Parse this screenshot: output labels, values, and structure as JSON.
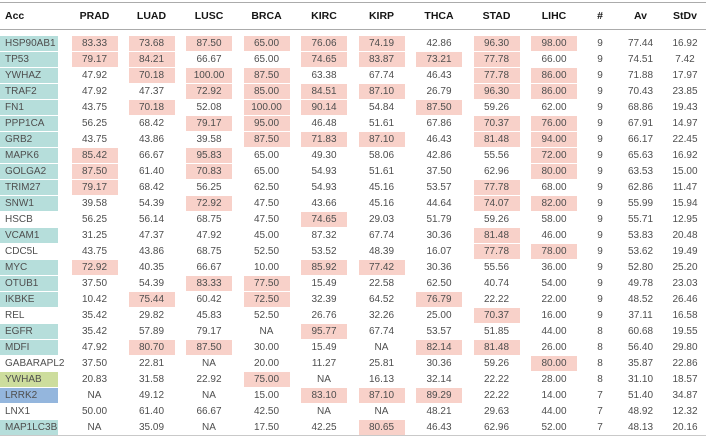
{
  "colors": {
    "highlight": "#f8d1c9",
    "teal": "#b6dedb",
    "green": "#cddd9d",
    "blue": "#94b6dd"
  },
  "chart_data": {
    "type": "table",
    "columns": [
      "Acc",
      "PRAD",
      "LUAD",
      "LUSC",
      "BRCA",
      "KIRC",
      "KIRP",
      "THCA",
      "STAD",
      "LIHC",
      "#",
      "Av",
      "StDv"
    ],
    "rows": [
      {
        "acc": "HSP90AB1",
        "acc_color": "teal",
        "values": [
          "83.33",
          "73.68",
          "87.50",
          "65.00",
          "76.06",
          "74.19",
          "42.86",
          "96.30",
          "98.00"
        ],
        "highlights": [
          1,
          1,
          1,
          1,
          1,
          1,
          0,
          1,
          1
        ],
        "count": "9",
        "av": "77.44",
        "stdv": "16.92"
      },
      {
        "acc": "TP53",
        "acc_color": "teal",
        "values": [
          "79.17",
          "84.21",
          "66.67",
          "65.00",
          "74.65",
          "83.87",
          "73.21",
          "77.78",
          "66.00"
        ],
        "highlights": [
          1,
          1,
          0,
          0,
          1,
          1,
          1,
          1,
          0
        ],
        "count": "9",
        "av": "74.51",
        "stdv": "7.42"
      },
      {
        "acc": "YWHAZ",
        "acc_color": "teal",
        "values": [
          "47.92",
          "70.18",
          "100.00",
          "87.50",
          "63.38",
          "67.74",
          "46.43",
          "77.78",
          "86.00"
        ],
        "highlights": [
          0,
          1,
          1,
          1,
          0,
          0,
          0,
          1,
          1
        ],
        "count": "9",
        "av": "71.88",
        "stdv": "17.97"
      },
      {
        "acc": "TRAF2",
        "acc_color": "teal",
        "values": [
          "47.92",
          "47.37",
          "72.92",
          "85.00",
          "84.51",
          "87.10",
          "26.79",
          "96.30",
          "86.00"
        ],
        "highlights": [
          0,
          0,
          1,
          1,
          1,
          1,
          0,
          1,
          1
        ],
        "count": "9",
        "av": "70.43",
        "stdv": "23.85"
      },
      {
        "acc": "FN1",
        "acc_color": "teal",
        "values": [
          "43.75",
          "70.18",
          "52.08",
          "100.00",
          "90.14",
          "54.84",
          "87.50",
          "59.26",
          "62.00"
        ],
        "highlights": [
          0,
          1,
          0,
          1,
          1,
          0,
          1,
          0,
          0
        ],
        "count": "9",
        "av": "68.86",
        "stdv": "19.43"
      },
      {
        "acc": "PPP1CA",
        "acc_color": "teal",
        "values": [
          "56.25",
          "68.42",
          "79.17",
          "95.00",
          "46.48",
          "51.61",
          "67.86",
          "70.37",
          "76.00"
        ],
        "highlights": [
          0,
          0,
          1,
          1,
          0,
          0,
          0,
          1,
          1
        ],
        "count": "9",
        "av": "67.91",
        "stdv": "14.97"
      },
      {
        "acc": "GRB2",
        "acc_color": "teal",
        "values": [
          "43.75",
          "43.86",
          "39.58",
          "87.50",
          "71.83",
          "87.10",
          "46.43",
          "81.48",
          "94.00"
        ],
        "highlights": [
          0,
          0,
          0,
          1,
          1,
          1,
          0,
          1,
          1
        ],
        "count": "9",
        "av": "66.17",
        "stdv": "22.45"
      },
      {
        "acc": "MAPK6",
        "acc_color": "teal",
        "values": [
          "85.42",
          "66.67",
          "95.83",
          "65.00",
          "49.30",
          "58.06",
          "42.86",
          "55.56",
          "72.00"
        ],
        "highlights": [
          1,
          0,
          1,
          0,
          0,
          0,
          0,
          0,
          1
        ],
        "count": "9",
        "av": "65.63",
        "stdv": "16.92"
      },
      {
        "acc": "GOLGA2",
        "acc_color": "teal",
        "values": [
          "87.50",
          "61.40",
          "70.83",
          "65.00",
          "54.93",
          "51.61",
          "37.50",
          "62.96",
          "80.00"
        ],
        "highlights": [
          1,
          0,
          1,
          0,
          0,
          0,
          0,
          0,
          1
        ],
        "count": "9",
        "av": "63.53",
        "stdv": "15.00"
      },
      {
        "acc": "TRIM27",
        "acc_color": "teal",
        "values": [
          "79.17",
          "68.42",
          "56.25",
          "62.50",
          "54.93",
          "45.16",
          "53.57",
          "77.78",
          "68.00"
        ],
        "highlights": [
          1,
          0,
          0,
          0,
          0,
          0,
          0,
          1,
          0
        ],
        "count": "9",
        "av": "62.86",
        "stdv": "11.47"
      },
      {
        "acc": "SNW1",
        "acc_color": "teal",
        "values": [
          "39.58",
          "54.39",
          "72.92",
          "47.50",
          "43.66",
          "45.16",
          "44.64",
          "74.07",
          "82.00"
        ],
        "highlights": [
          0,
          0,
          1,
          0,
          0,
          0,
          0,
          1,
          1
        ],
        "count": "9",
        "av": "55.99",
        "stdv": "15.94"
      },
      {
        "acc": "HSCB",
        "acc_color": "none",
        "values": [
          "56.25",
          "56.14",
          "68.75",
          "47.50",
          "74.65",
          "29.03",
          "51.79",
          "59.26",
          "58.00"
        ],
        "highlights": [
          0,
          0,
          0,
          0,
          1,
          0,
          0,
          0,
          0
        ],
        "count": "9",
        "av": "55.71",
        "stdv": "12.95"
      },
      {
        "acc": "VCAM1",
        "acc_color": "teal",
        "values": [
          "31.25",
          "47.37",
          "47.92",
          "45.00",
          "87.32",
          "67.74",
          "30.36",
          "81.48",
          "46.00"
        ],
        "highlights": [
          0,
          0,
          0,
          0,
          0,
          0,
          0,
          1,
          0
        ],
        "count": "9",
        "av": "53.83",
        "stdv": "20.48"
      },
      {
        "acc": "CDC5L",
        "acc_color": "none",
        "values": [
          "43.75",
          "43.86",
          "68.75",
          "52.50",
          "53.52",
          "48.39",
          "16.07",
          "77.78",
          "78.00"
        ],
        "highlights": [
          0,
          0,
          0,
          0,
          0,
          0,
          0,
          1,
          1
        ],
        "count": "9",
        "av": "53.62",
        "stdv": "19.49"
      },
      {
        "acc": "MYC",
        "acc_color": "teal",
        "values": [
          "72.92",
          "40.35",
          "66.67",
          "10.00",
          "85.92",
          "77.42",
          "30.36",
          "55.56",
          "36.00"
        ],
        "highlights": [
          1,
          0,
          0,
          0,
          1,
          1,
          0,
          0,
          0
        ],
        "count": "9",
        "av": "52.80",
        "stdv": "25.20"
      },
      {
        "acc": "OTUB1",
        "acc_color": "teal",
        "values": [
          "37.50",
          "54.39",
          "83.33",
          "77.50",
          "15.49",
          "22.58",
          "62.50",
          "40.74",
          "54.00"
        ],
        "highlights": [
          0,
          0,
          1,
          1,
          0,
          0,
          0,
          0,
          0
        ],
        "count": "9",
        "av": "49.78",
        "stdv": "23.03"
      },
      {
        "acc": "IKBKE",
        "acc_color": "teal",
        "values": [
          "10.42",
          "75.44",
          "60.42",
          "72.50",
          "32.39",
          "64.52",
          "76.79",
          "22.22",
          "22.00"
        ],
        "highlights": [
          0,
          1,
          0,
          1,
          0,
          0,
          1,
          0,
          0
        ],
        "count": "9",
        "av": "48.52",
        "stdv": "26.46"
      },
      {
        "acc": "REL",
        "acc_color": "none",
        "values": [
          "35.42",
          "29.82",
          "45.83",
          "52.50",
          "26.76",
          "32.26",
          "25.00",
          "70.37",
          "16.00"
        ],
        "highlights": [
          0,
          0,
          0,
          0,
          0,
          0,
          0,
          1,
          0
        ],
        "count": "9",
        "av": "37.11",
        "stdv": "16.58"
      },
      {
        "acc": "EGFR",
        "acc_color": "teal",
        "values": [
          "35.42",
          "57.89",
          "79.17",
          "NA",
          "95.77",
          "67.74",
          "53.57",
          "51.85",
          "44.00"
        ],
        "highlights": [
          0,
          0,
          0,
          0,
          1,
          0,
          0,
          0,
          0
        ],
        "count": "8",
        "av": "60.68",
        "stdv": "19.55"
      },
      {
        "acc": "MDFI",
        "acc_color": "teal",
        "values": [
          "47.92",
          "80.70",
          "87.50",
          "30.00",
          "15.49",
          "NA",
          "82.14",
          "81.48",
          "26.00"
        ],
        "highlights": [
          0,
          1,
          1,
          0,
          0,
          0,
          1,
          1,
          0
        ],
        "count": "8",
        "av": "56.40",
        "stdv": "29.80"
      },
      {
        "acc": "GABARAPL2",
        "acc_color": "none",
        "values": [
          "37.50",
          "22.81",
          "NA",
          "20.00",
          "11.27",
          "25.81",
          "30.36",
          "59.26",
          "80.00"
        ],
        "highlights": [
          0,
          0,
          0,
          0,
          0,
          0,
          0,
          0,
          1
        ],
        "count": "8",
        "av": "35.87",
        "stdv": "22.86"
      },
      {
        "acc": "YWHAB",
        "acc_color": "green",
        "values": [
          "20.83",
          "31.58",
          "22.92",
          "75.00",
          "NA",
          "16.13",
          "32.14",
          "22.22",
          "28.00"
        ],
        "highlights": [
          0,
          0,
          0,
          1,
          0,
          0,
          0,
          0,
          0
        ],
        "count": "8",
        "av": "31.10",
        "stdv": "18.57"
      },
      {
        "acc": "LRRK2",
        "acc_color": "blue",
        "values": [
          "NA",
          "49.12",
          "NA",
          "15.00",
          "83.10",
          "87.10",
          "89.29",
          "22.22",
          "14.00"
        ],
        "highlights": [
          0,
          0,
          0,
          0,
          1,
          1,
          1,
          0,
          0
        ],
        "count": "7",
        "av": "51.40",
        "stdv": "34.87"
      },
      {
        "acc": "LNX1",
        "acc_color": "none",
        "values": [
          "50.00",
          "61.40",
          "66.67",
          "42.50",
          "NA",
          "NA",
          "48.21",
          "29.63",
          "44.00"
        ],
        "highlights": [
          0,
          0,
          0,
          0,
          0,
          0,
          0,
          0,
          0
        ],
        "count": "7",
        "av": "48.92",
        "stdv": "12.32"
      },
      {
        "acc": "MAP1LC3B",
        "acc_color": "teal",
        "values": [
          "NA",
          "35.09",
          "NA",
          "17.50",
          "42.25",
          "80.65",
          "46.43",
          "62.96",
          "52.00"
        ],
        "highlights": [
          0,
          0,
          0,
          0,
          0,
          1,
          0,
          0,
          0
        ],
        "count": "7",
        "av": "48.13",
        "stdv": "20.16"
      }
    ]
  }
}
